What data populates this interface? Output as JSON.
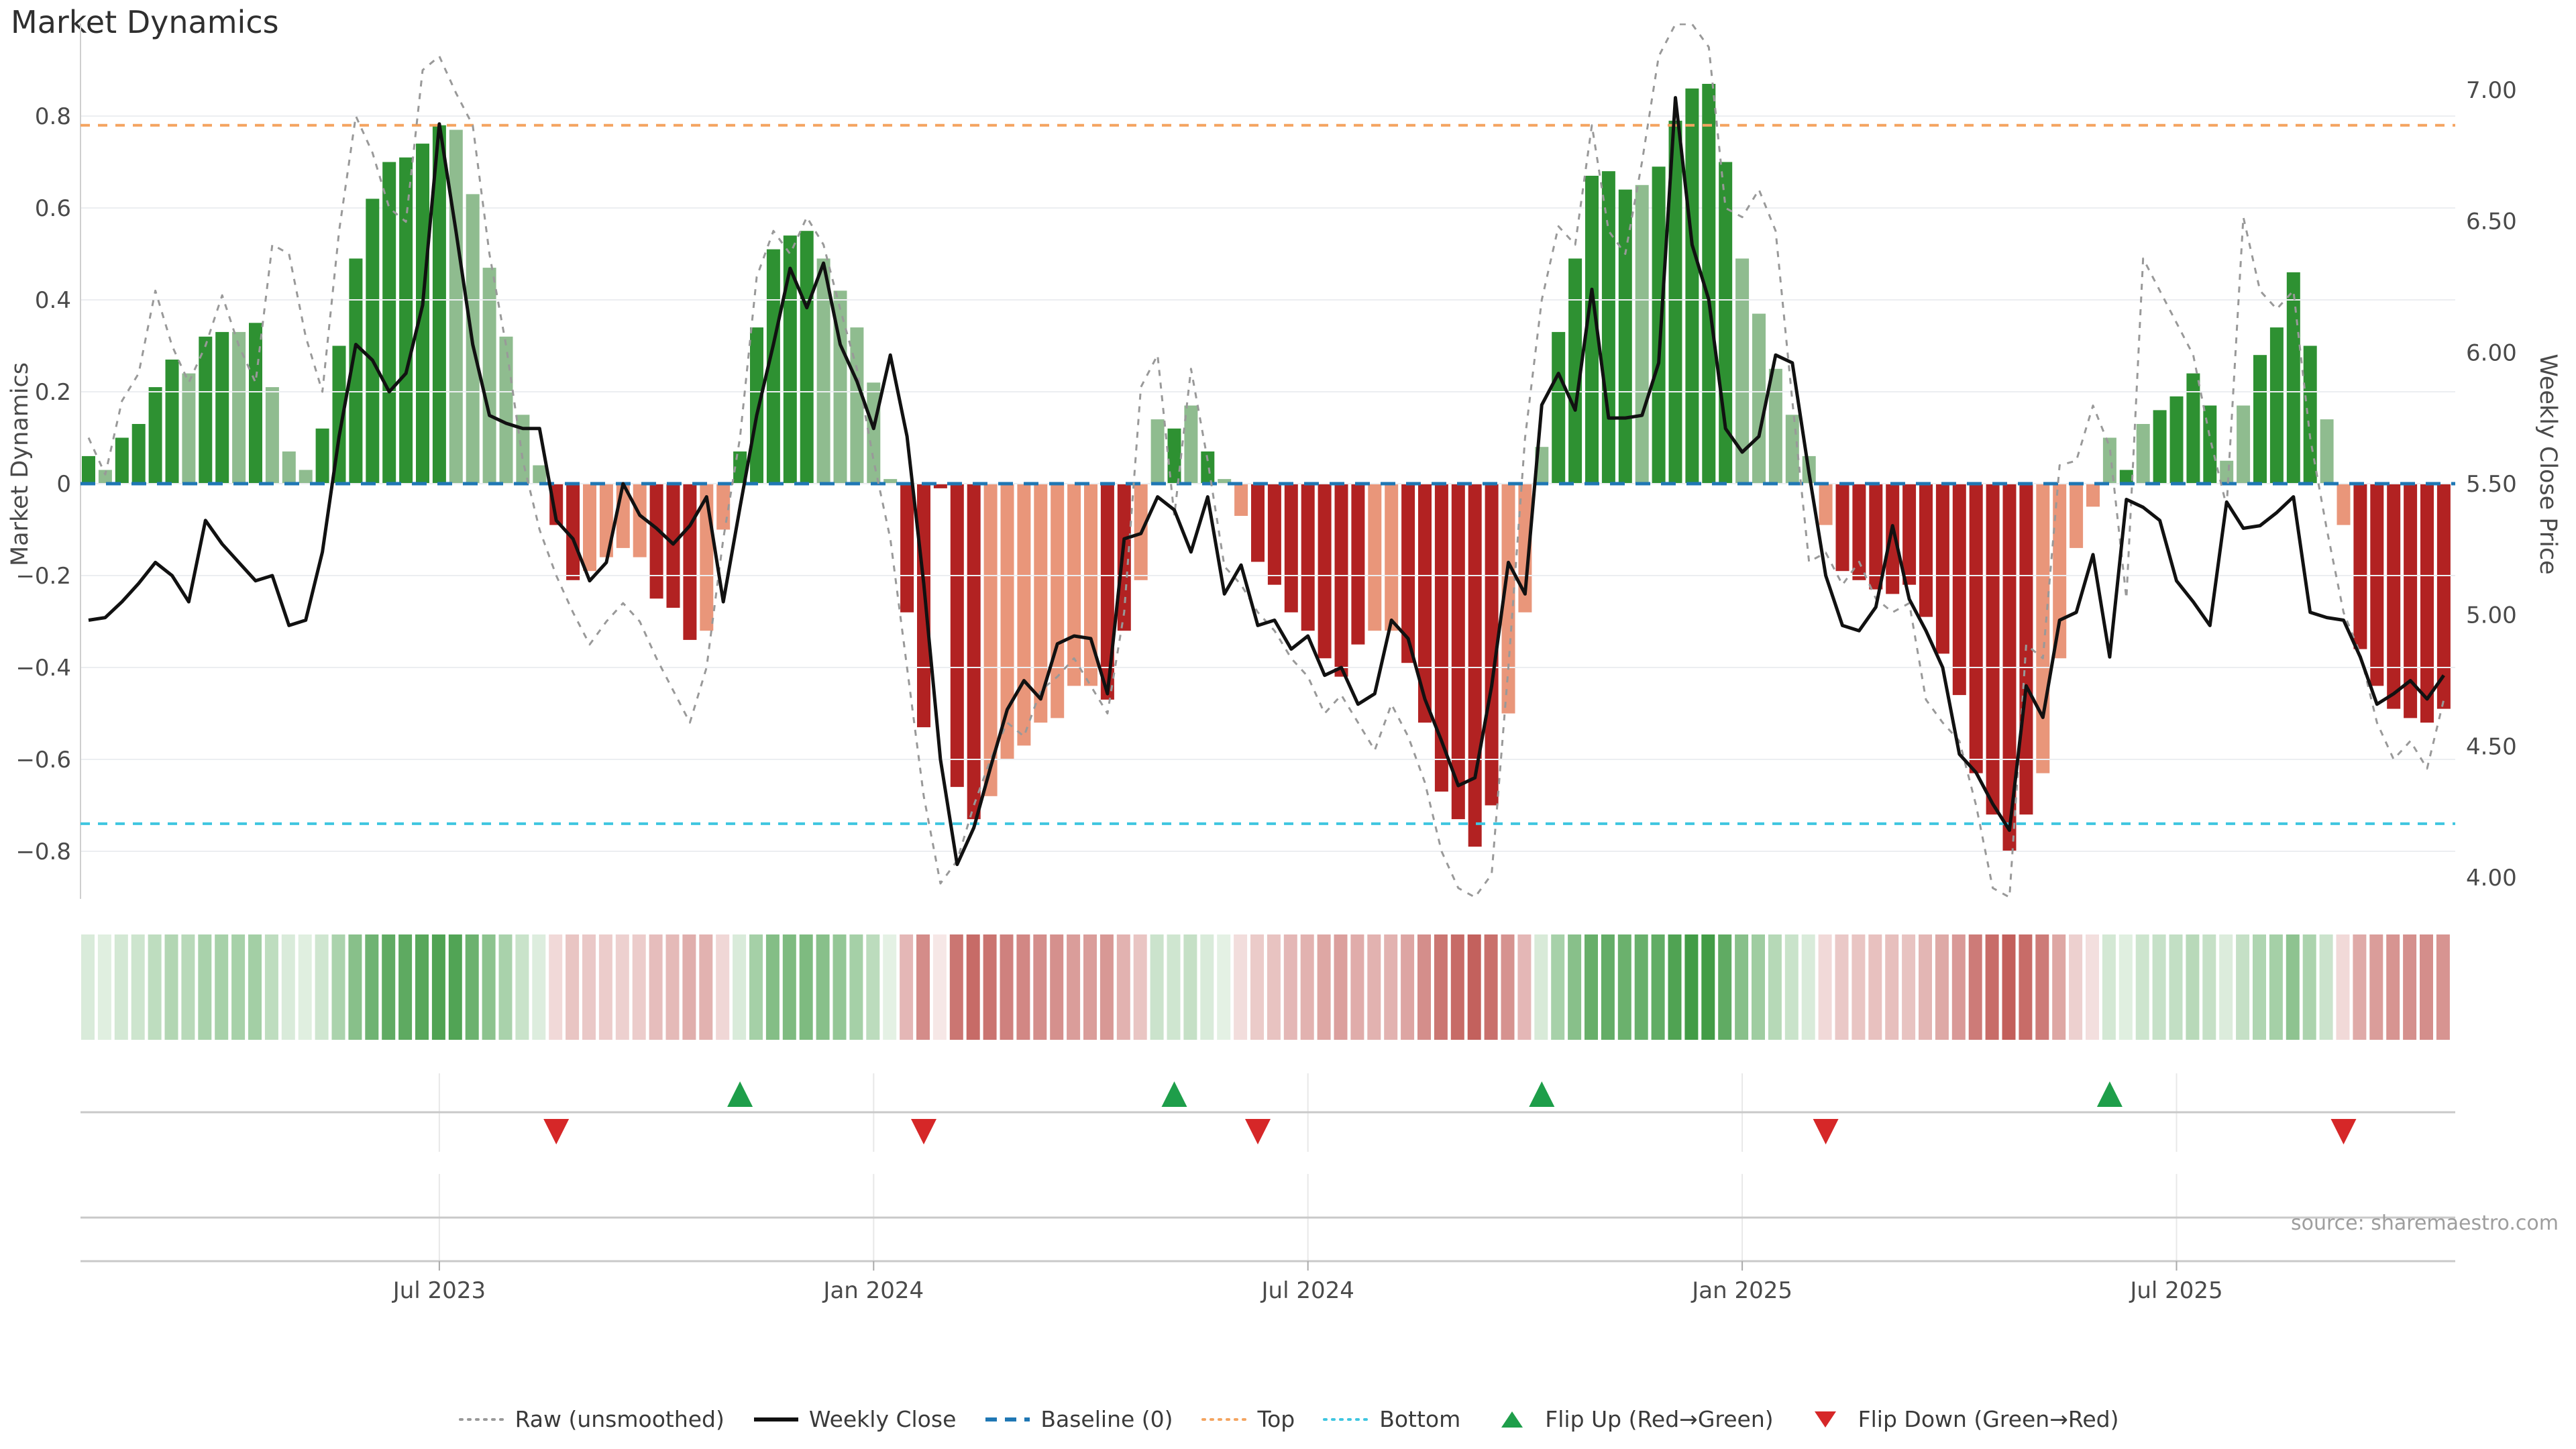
{
  "title": "Market Dynamics",
  "source_note": "source: sharemaestro.com",
  "axis_left": {
    "label": "Market Dynamics",
    "tick_labels": [
      "0.8",
      "0.6",
      "0.4",
      "0.2",
      "0",
      "−0.2",
      "−0.4",
      "−0.6",
      "−0.8"
    ],
    "tick_values": [
      0.8,
      0.6,
      0.4,
      0.2,
      0,
      -0.2,
      -0.4,
      -0.6,
      -0.8
    ]
  },
  "axis_right": {
    "label": "Weekly Close Price",
    "tick_labels": [
      "7.00",
      "6.50",
      "6.00",
      "5.50",
      "5.00",
      "4.50",
      "4.00"
    ],
    "tick_values": [
      7.0,
      6.5,
      6.0,
      5.5,
      5.0,
      4.5,
      4.0
    ]
  },
  "axis_x": {
    "ticks": [
      {
        "label": "Jul 2023",
        "index": 21
      },
      {
        "label": "Jan 2024",
        "index": 47
      },
      {
        "label": "Jul 2024",
        "index": 73
      },
      {
        "label": "Jan 2025",
        "index": 99
      },
      {
        "label": "Jul 2025",
        "index": 125
      }
    ]
  },
  "legend": [
    {
      "label": "Raw (unsmoothed)",
      "swatch": "dotted-line",
      "color": "#999999"
    },
    {
      "label": "Weekly Close",
      "swatch": "solid-line",
      "color": "#111111"
    },
    {
      "label": "Baseline (0)",
      "swatch": "dashed-line",
      "color": "#1F77B4"
    },
    {
      "label": "Top",
      "swatch": "dotted-line",
      "color": "#F4A460"
    },
    {
      "label": "Bottom",
      "swatch": "dotted-line",
      "color": "#3FC6E0"
    },
    {
      "label": "Flip Up (Red→Green)",
      "swatch": "triangle-up",
      "color": "#1E9E4A"
    },
    {
      "label": "Flip Down (Green→Red)",
      "swatch": "triangle-down",
      "color": "#D62728"
    }
  ],
  "colors": {
    "bar_pos_strong": "#2E9132",
    "bar_pos_soft": "#8FBC8F",
    "bar_neg_strong": "#B22222",
    "bar_neg_soft": "#E9967A",
    "close_line": "#111111",
    "raw_line": "#999999",
    "baseline": "#1F77B4",
    "top": "#F4A460",
    "bottom": "#3FC6E0",
    "flip_up": "#1E9E4A",
    "flip_down": "#D62728",
    "heat_pos": "#2E9132",
    "heat_neg": "#B8433E",
    "grid": "#ECEEF1",
    "axis": "#C9C9C9",
    "spine": "#CFCFCF",
    "text": "#4a4a4a"
  },
  "chart_data": {
    "type": "bar+line",
    "x_unit": "week",
    "left_ylim": [
      -0.9,
      1.0
    ],
    "right_axis_map": {
      "price_at_zero": 5.5,
      "price_per_unit": 1.75
    },
    "baseline": 0,
    "top_line": 0.78,
    "bottom_line": -0.74,
    "bar_values": [
      0.06,
      0.03,
      0.1,
      0.13,
      0.21,
      0.27,
      0.24,
      0.32,
      0.33,
      0.33,
      0.35,
      0.21,
      0.07,
      0.03,
      0.12,
      0.3,
      0.49,
      0.62,
      0.7,
      0.71,
      0.74,
      0.78,
      0.77,
      0.63,
      0.47,
      0.32,
      0.15,
      0.04,
      -0.09,
      -0.21,
      -0.19,
      -0.16,
      -0.14,
      -0.16,
      -0.25,
      -0.27,
      -0.34,
      -0.32,
      -0.1,
      0.07,
      0.34,
      0.51,
      0.54,
      0.55,
      0.49,
      0.42,
      0.34,
      0.22,
      0.01,
      -0.28,
      -0.53,
      -0.01,
      -0.66,
      -0.73,
      -0.68,
      -0.6,
      -0.57,
      -0.52,
      -0.51,
      -0.44,
      -0.44,
      -0.47,
      -0.32,
      -0.21,
      0.14,
      0.12,
      0.17,
      0.07,
      0.01,
      -0.07,
      -0.17,
      -0.22,
      -0.28,
      -0.32,
      -0.38,
      -0.42,
      -0.35,
      -0.32,
      -0.32,
      -0.39,
      -0.52,
      -0.67,
      -0.73,
      -0.79,
      -0.7,
      -0.5,
      -0.28,
      0.08,
      0.33,
      0.49,
      0.67,
      0.68,
      0.64,
      0.65,
      0.69,
      0.79,
      0.86,
      0.87,
      0.7,
      0.49,
      0.37,
      0.25,
      0.15,
      0.06,
      -0.09,
      -0.19,
      -0.21,
      -0.23,
      -0.24,
      -0.22,
      -0.29,
      -0.37,
      -0.46,
      -0.63,
      -0.72,
      -0.8,
      -0.72,
      -0.63,
      -0.38,
      -0.14,
      -0.05,
      0.1,
      0.03,
      0.13,
      0.16,
      0.19,
      0.24,
      0.17,
      0.05,
      0.17,
      0.28,
      0.34,
      0.46,
      0.3,
      0.14,
      -0.09,
      -0.36,
      -0.44,
      -0.49,
      -0.51,
      -0.52,
      -0.49
    ],
    "bar_tone": "dlddddlddldlllddddddddllllllddlllldddlldddddllllldddddlllllllddlldldlldddddddllddddddllldddddl                dddddllllllddddddddddddllllldlddddllddddllddddddl",
    "weekly_close": [
      4.98,
      4.99,
      5.05,
      5.12,
      5.2,
      5.15,
      5.05,
      5.36,
      5.27,
      5.2,
      5.13,
      5.15,
      4.96,
      4.98,
      5.24,
      5.68,
      6.03,
      5.97,
      5.85,
      5.92,
      6.18,
      6.87,
      6.46,
      6.03,
      5.76,
      5.73,
      5.71,
      5.71,
      5.36,
      5.29,
      5.13,
      5.2,
      5.5,
      5.38,
      5.33,
      5.27,
      5.34,
      5.45,
      5.05,
      5.41,
      5.76,
      6.03,
      6.32,
      6.17,
      6.34,
      6.03,
      5.89,
      5.71,
      5.99,
      5.68,
      5.12,
      4.45,
      4.05,
      4.19,
      4.42,
      4.64,
      4.75,
      4.68,
      4.89,
      4.92,
      4.91,
      4.7,
      5.29,
      5.31,
      5.45,
      5.4,
      5.24,
      5.45,
      5.08,
      5.19,
      4.96,
      4.98,
      4.87,
      4.92,
      4.77,
      4.8,
      4.66,
      4.7,
      4.98,
      4.91,
      4.68,
      4.52,
      4.35,
      4.38,
      4.73,
      5.2,
      5.08,
      5.8,
      5.92,
      5.78,
      6.24,
      5.75,
      5.75,
      5.76,
      5.96,
      6.97,
      6.41,
      6.2,
      5.71,
      5.62,
      5.68,
      5.99,
      5.96,
      5.54,
      5.15,
      4.96,
      4.94,
      5.03,
      5.34,
      5.06,
      4.94,
      4.8,
      4.47,
      4.4,
      4.28,
      4.18,
      4.73,
      4.61,
      4.98,
      5.01,
      5.23,
      4.84,
      5.44,
      5.41,
      5.36,
      5.13,
      5.05,
      4.96,
      5.43,
      5.33,
      5.34,
      5.39,
      5.45,
      5.01,
      4.99,
      4.98,
      4.84,
      4.66,
      4.7,
      4.75,
      4.68,
      4.77
    ],
    "raw_unsmoothed": [
      0.1,
      0.02,
      0.18,
      0.24,
      0.42,
      0.3,
      0.22,
      0.3,
      0.41,
      0.3,
      0.22,
      0.52,
      0.5,
      0.32,
      0.2,
      0.55,
      0.8,
      0.72,
      0.6,
      0.57,
      0.9,
      0.93,
      0.85,
      0.78,
      0.5,
      0.3,
      0.05,
      -0.1,
      -0.2,
      -0.28,
      -0.35,
      -0.3,
      -0.26,
      -0.3,
      -0.38,
      -0.45,
      -0.52,
      -0.4,
      -0.12,
      0.1,
      0.45,
      0.55,
      0.5,
      0.58,
      0.52,
      0.38,
      0.25,
      0.05,
      -0.12,
      -0.4,
      -0.68,
      -0.87,
      -0.82,
      -0.7,
      -0.6,
      -0.52,
      -0.55,
      -0.45,
      -0.42,
      -0.38,
      -0.44,
      -0.5,
      -0.28,
      0.21,
      0.28,
      -0.07,
      0.25,
      0.05,
      -0.18,
      -0.22,
      -0.28,
      -0.32,
      -0.38,
      -0.42,
      -0.5,
      -0.46,
      -0.52,
      -0.58,
      -0.48,
      -0.55,
      -0.65,
      -0.8,
      -0.88,
      -0.9,
      -0.85,
      -0.4,
      0.1,
      0.4,
      0.56,
      0.52,
      0.78,
      0.55,
      0.5,
      0.7,
      0.93,
      1.0,
      1.0,
      0.95,
      0.6,
      0.58,
      0.64,
      0.55,
      0.18,
      -0.17,
      -0.15,
      -0.22,
      -0.17,
      -0.25,
      -0.28,
      -0.26,
      -0.47,
      -0.52,
      -0.56,
      -0.7,
      -0.88,
      -0.9,
      -0.35,
      -0.38,
      0.04,
      0.05,
      0.17,
      0.08,
      -0.25,
      0.49,
      0.42,
      0.35,
      0.28,
      0.1,
      -0.05,
      0.58,
      0.42,
      0.38,
      0.42,
      0.1,
      -0.1,
      -0.28,
      -0.37,
      -0.52,
      -0.6,
      -0.56,
      -0.62,
      -0.47
    ],
    "flip_up_indices": [
      39,
      65,
      87,
      121
    ],
    "flip_down_indices": [
      28,
      50,
      70,
      104,
      135
    ]
  }
}
